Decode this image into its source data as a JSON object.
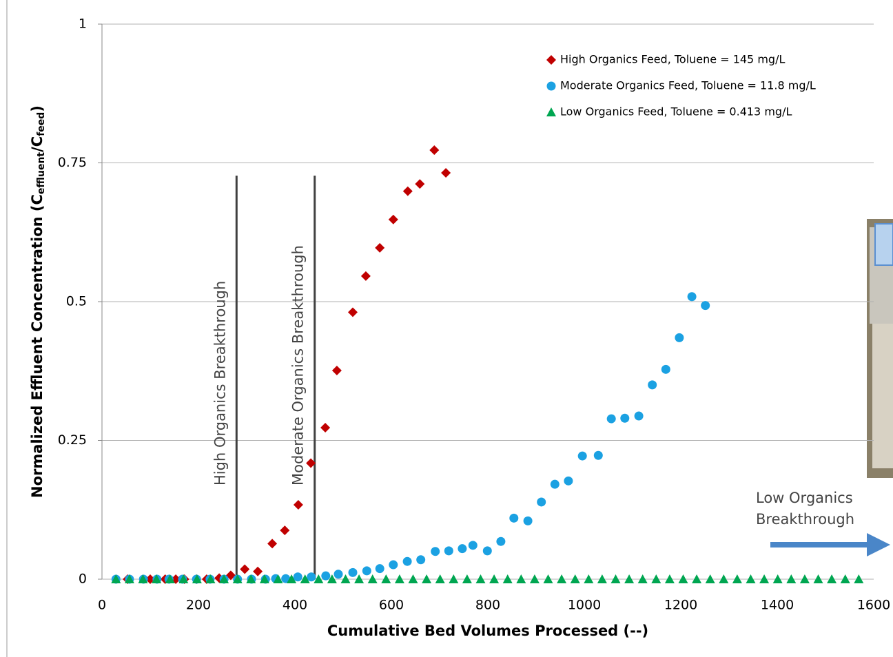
{
  "chart_data": {
    "type": "scatter",
    "x_label": "Cumulative Bed Volumes Processed (--)",
    "y_label_parts": [
      "Normalized Effluent Concentration (C",
      "effluent",
      "/C",
      "feed",
      ")"
    ],
    "xlim": [
      0,
      1600
    ],
    "xticks": [
      0,
      200,
      400,
      600,
      800,
      1000,
      1200,
      1400,
      1600
    ],
    "ylim": [
      0,
      1
    ],
    "yticks": [
      0,
      0.25,
      0.5,
      0.75,
      1
    ],
    "grid": true,
    "series": [
      {
        "name": "High Organics Feed, Toluene = 145 mg/L",
        "color": "#c00000",
        "marker": "diamond",
        "x": [
          53,
          100,
          131,
          153,
          171,
          196,
          217,
          243,
          267,
          296,
          323,
          353,
          379,
          407,
          433,
          463,
          487,
          520,
          547,
          576,
          604,
          634,
          659,
          689,
          713
        ],
        "values": [
          0,
          0,
          0,
          0,
          0,
          0,
          0,
          0.002,
          0.007,
          0.018,
          0.014,
          0.064,
          0.088,
          0.134,
          0.209,
          0.273,
          0.376,
          0.481,
          0.546,
          0.597,
          0.648,
          0.699,
          0.712,
          0.773,
          0.732
        ]
      },
      {
        "name": "Moderate Organics Feed, Toluene = 11.8 mg/L",
        "color": "#1ba1e2",
        "marker": "circle",
        "x": [
          29,
          57,
          86,
          114,
          139,
          167,
          196,
          224,
          253,
          281,
          310,
          339,
          360,
          381,
          406,
          434,
          464,
          490,
          520,
          549,
          576,
          604,
          633,
          661,
          691,
          719,
          747,
          769,
          799,
          827,
          854,
          883,
          911,
          939,
          967,
          996,
          1029,
          1056,
          1084,
          1113,
          1141,
          1169,
          1197,
          1223,
          1251
        ],
        "values": [
          0,
          0,
          0,
          0,
          0,
          0,
          0,
          0,
          0,
          0,
          0,
          0,
          0.001,
          0.001,
          0.004,
          0.004,
          0.006,
          0.009,
          0.012,
          0.015,
          0.019,
          0.026,
          0.032,
          0.035,
          0.05,
          0.051,
          0.055,
          0.061,
          0.051,
          0.068,
          0.11,
          0.105,
          0.139,
          0.171,
          0.177,
          0.222,
          0.223,
          0.289,
          0.29,
          0.294,
          0.35,
          0.378,
          0.435,
          0.509,
          0.493
        ]
      },
      {
        "name": "Low Organics Feed, Toluene = 0.413 mg/L",
        "color": "#00a651",
        "marker": "triangle",
        "x": [
          29,
          57,
          85,
          113,
          141,
          169,
          197,
          225,
          253,
          281,
          309,
          337,
          365,
          393,
          421,
          449,
          477,
          505,
          533,
          561,
          589,
          617,
          645,
          673,
          701,
          729,
          757,
          785,
          813,
          841,
          869,
          897,
          925,
          953,
          981,
          1009,
          1037,
          1065,
          1093,
          1121,
          1149,
          1177,
          1205,
          1233,
          1261,
          1289,
          1317,
          1345,
          1373,
          1401,
          1429,
          1457,
          1485,
          1513,
          1541,
          1569
        ],
        "values": [
          0,
          0,
          0,
          0,
          0,
          0,
          0,
          0,
          0,
          0,
          0,
          0,
          0,
          0,
          0,
          0,
          0,
          0,
          0,
          0,
          0,
          0,
          0,
          0,
          0,
          0,
          0,
          0,
          0,
          0,
          0,
          0,
          0,
          0,
          0,
          0,
          0,
          0,
          0,
          0,
          0,
          0,
          0,
          0,
          0,
          0,
          0,
          0,
          0,
          0,
          0,
          0,
          0,
          0,
          0,
          0
        ]
      }
    ],
    "vlines": [
      {
        "x": 279,
        "ytop": 0.727,
        "label": "High Organics Breakthrough"
      },
      {
        "x": 441,
        "ytop": 0.727,
        "label": "Moderate Organics Breakthrough"
      }
    ],
    "arrow_label": [
      "Low Organics",
      "Breakthrough"
    ]
  }
}
